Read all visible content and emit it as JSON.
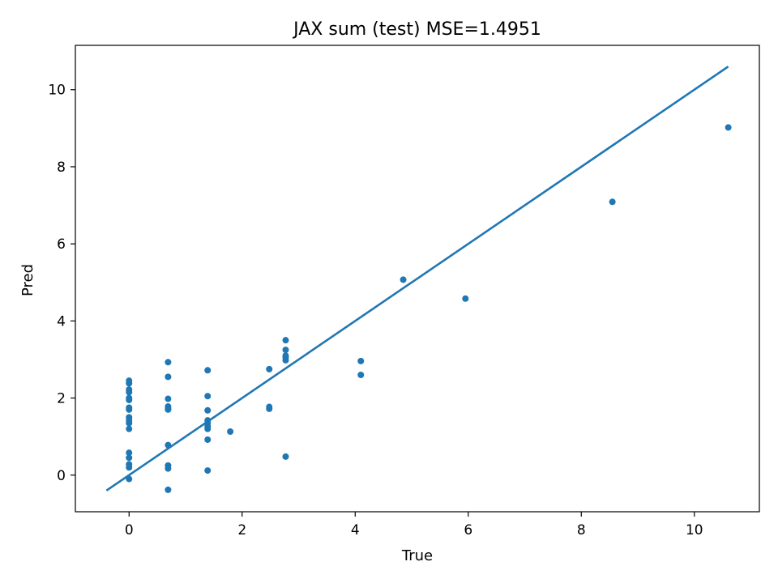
{
  "chart_data": {
    "type": "scatter",
    "title": "JAX sum (test) MSE=1.4951",
    "xlabel": "True",
    "ylabel": "Pred",
    "xlim": [
      -0.95,
      11.15
    ],
    "ylim": [
      -0.95,
      11.15
    ],
    "xticks": [
      0,
      2,
      4,
      6,
      8,
      10
    ],
    "yticks": [
      0,
      2,
      4,
      6,
      8,
      10
    ],
    "grid": false,
    "color": "#1f77b4",
    "reference_line": {
      "x": [
        -0.4,
        10.6
      ],
      "y": [
        -0.4,
        10.6
      ]
    },
    "points": [
      {
        "x": 0.0,
        "y": 2.45
      },
      {
        "x": 0.0,
        "y": 2.38
      },
      {
        "x": 0.0,
        "y": 2.22
      },
      {
        "x": 0.0,
        "y": 2.15
      },
      {
        "x": 0.0,
        "y": 2.0
      },
      {
        "x": 0.0,
        "y": 1.95
      },
      {
        "x": 0.0,
        "y": 1.75
      },
      {
        "x": 0.0,
        "y": 1.7
      },
      {
        "x": 0.0,
        "y": 1.5
      },
      {
        "x": 0.0,
        "y": 1.42
      },
      {
        "x": 0.0,
        "y": 1.35
      },
      {
        "x": 0.0,
        "y": 1.2
      },
      {
        "x": 0.0,
        "y": 0.58
      },
      {
        "x": 0.0,
        "y": 0.45
      },
      {
        "x": 0.0,
        "y": 0.28
      },
      {
        "x": 0.0,
        "y": 0.2
      },
      {
        "x": 0.0,
        "y": -0.1
      },
      {
        "x": 0.69,
        "y": 2.93
      },
      {
        "x": 0.69,
        "y": 2.55
      },
      {
        "x": 0.69,
        "y": 1.98
      },
      {
        "x": 0.69,
        "y": 1.78
      },
      {
        "x": 0.69,
        "y": 1.72
      },
      {
        "x": 0.69,
        "y": 1.7
      },
      {
        "x": 0.69,
        "y": 0.78
      },
      {
        "x": 0.69,
        "y": 0.25
      },
      {
        "x": 0.69,
        "y": 0.17
      },
      {
        "x": 0.69,
        "y": -0.38
      },
      {
        "x": 1.39,
        "y": 2.72
      },
      {
        "x": 1.39,
        "y": 2.05
      },
      {
        "x": 1.39,
        "y": 1.68
      },
      {
        "x": 1.39,
        "y": 1.42
      },
      {
        "x": 1.39,
        "y": 1.35
      },
      {
        "x": 1.39,
        "y": 1.27
      },
      {
        "x": 1.39,
        "y": 1.2
      },
      {
        "x": 1.39,
        "y": 0.92
      },
      {
        "x": 1.39,
        "y": 0.12
      },
      {
        "x": 1.79,
        "y": 1.13
      },
      {
        "x": 2.48,
        "y": 2.75
      },
      {
        "x": 2.48,
        "y": 1.77
      },
      {
        "x": 2.48,
        "y": 1.72
      },
      {
        "x": 2.77,
        "y": 3.5
      },
      {
        "x": 2.77,
        "y": 3.25
      },
      {
        "x": 2.77,
        "y": 3.1
      },
      {
        "x": 2.77,
        "y": 3.05
      },
      {
        "x": 2.77,
        "y": 2.98
      },
      {
        "x": 2.77,
        "y": 0.48
      },
      {
        "x": 4.1,
        "y": 2.96
      },
      {
        "x": 4.1,
        "y": 2.6
      },
      {
        "x": 4.85,
        "y": 5.07
      },
      {
        "x": 5.95,
        "y": 4.58
      },
      {
        "x": 8.55,
        "y": 7.09
      },
      {
        "x": 10.6,
        "y": 9.02
      }
    ]
  }
}
